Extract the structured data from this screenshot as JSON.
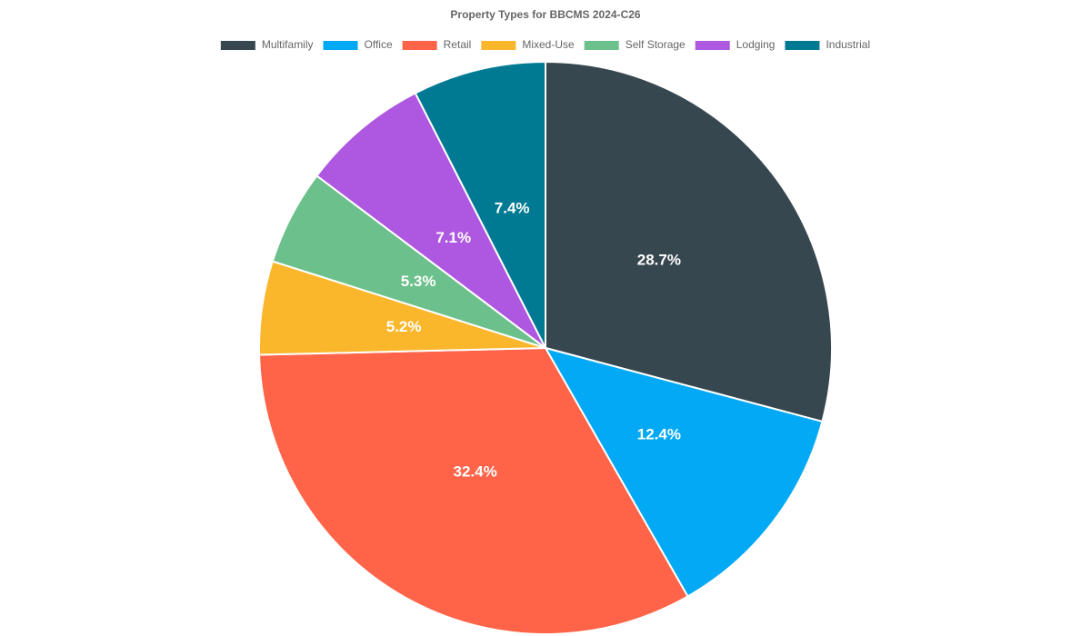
{
  "chart_data": {
    "type": "pie",
    "title": "Property Types for BBCMS 2024-C26",
    "categories": [
      "Multifamily",
      "Office",
      "Retail",
      "Mixed-Use",
      "Self Storage",
      "Lodging",
      "Industrial"
    ],
    "values": [
      28.7,
      12.4,
      32.4,
      5.2,
      5.3,
      7.1,
      7.4
    ],
    "value_labels": [
      "28.7%",
      "12.4%",
      "32.4%",
      "5.2%",
      "5.3%",
      "7.1%",
      "7.4%"
    ],
    "colors": [
      "#37474f",
      "#03a9f4",
      "#ff6348",
      "#fbb72c",
      "#6cc08b",
      "#ae57e0",
      "#007a93"
    ],
    "legend": "top"
  }
}
